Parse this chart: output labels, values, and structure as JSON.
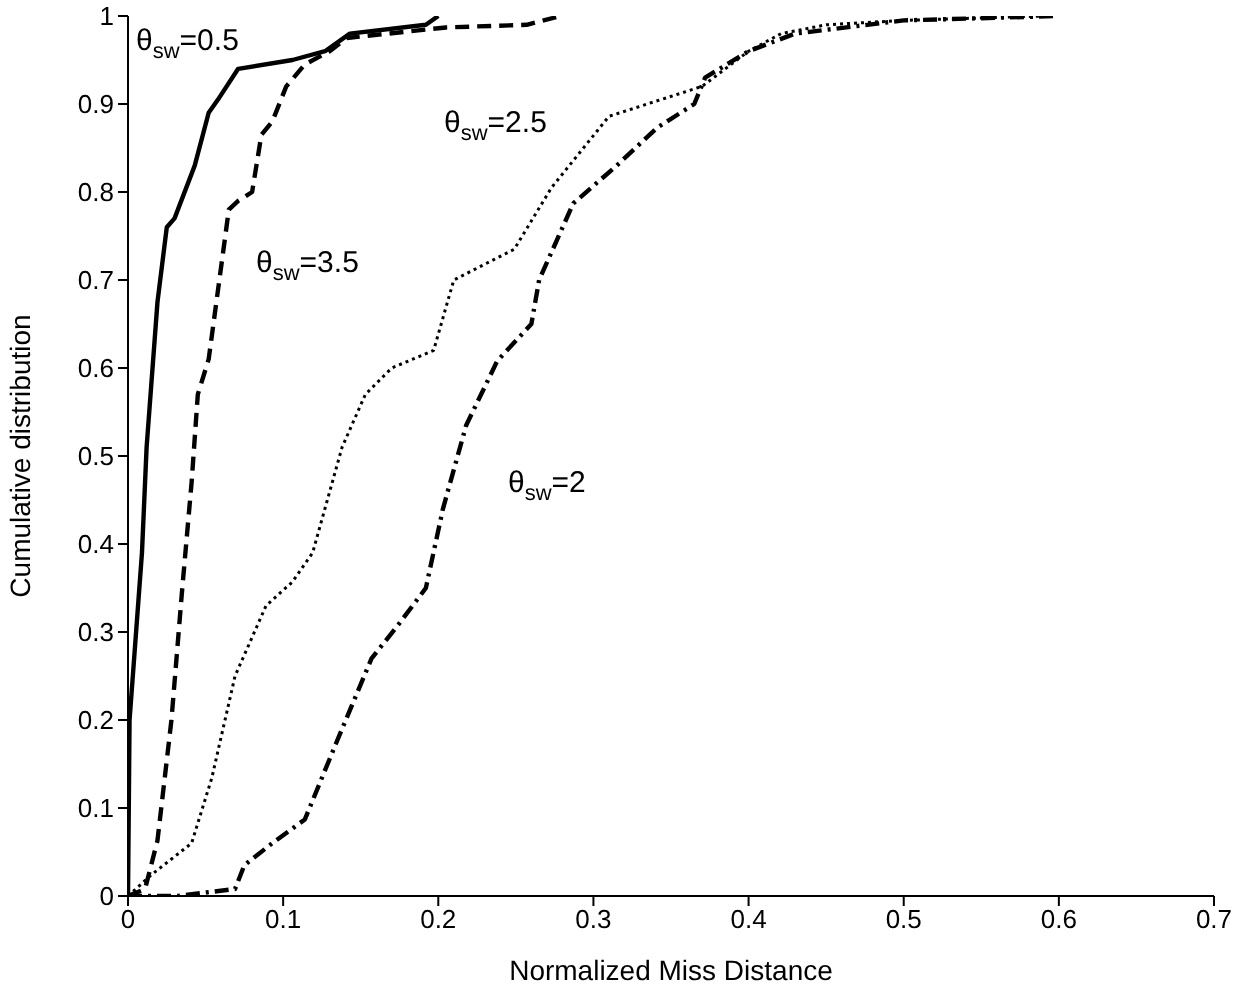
{
  "chart_data": {
    "type": "line",
    "xlabel": "Normalized Miss Distance",
    "ylabel": "Cumulative distribution",
    "xlim": [
      0,
      0.7
    ],
    "xticks": [
      0,
      0.1,
      0.2,
      0.3,
      0.4,
      0.5,
      0.6,
      0.7
    ],
    "ylim": [
      0,
      1
    ],
    "yticks": [
      0,
      0.1,
      0.2,
      0.3,
      0.4,
      0.5,
      0.6,
      0.7,
      0.8,
      0.9,
      1
    ],
    "marker": "none",
    "series": [
      {
        "name": "θ$_{sw}$=0.5",
        "color": "#000000",
        "line_style": "solid",
        "x": [
          0,
          0.001,
          0.009,
          0.012,
          0.019,
          0.025,
          0.03,
          0.043,
          0.052,
          0.058,
          0.071,
          0.106,
          0.127,
          0.143,
          0.192,
          0.2
        ],
        "values": [
          0,
          0.2,
          0.39,
          0.51,
          0.675,
          0.76,
          0.77,
          0.83,
          0.89,
          0.905,
          0.94,
          0.95,
          0.96,
          0.98,
          0.99,
          1
        ]
      },
      {
        "name": "θ$_{sw}$=3.5",
        "color": "#000000",
        "line_style": "dashed",
        "x": [
          0,
          0.011,
          0.019,
          0.028,
          0.035,
          0.041,
          0.045,
          0.052,
          0.065,
          0.071,
          0.08,
          0.086,
          0.093,
          0.102,
          0.114,
          0.13,
          0.141,
          0.205,
          0.257,
          0.279
        ],
        "values": [
          0,
          0.008,
          0.063,
          0.2,
          0.35,
          0.47,
          0.57,
          0.61,
          0.78,
          0.79,
          0.8,
          0.865,
          0.88,
          0.92,
          0.945,
          0.96,
          0.975,
          0.987,
          0.99,
          1
        ]
      },
      {
        "name": "θ$_{sw}$=2.5",
        "color": "#000000",
        "line_style": "dotted",
        "x": [
          0,
          0.015,
          0.041,
          0.054,
          0.069,
          0.089,
          0.106,
          0.119,
          0.138,
          0.153,
          0.17,
          0.197,
          0.21,
          0.249,
          0.273,
          0.31,
          0.37,
          0.4,
          0.421,
          0.45,
          0.5,
          0.59
        ],
        "values": [
          0,
          0.024,
          0.06,
          0.134,
          0.25,
          0.33,
          0.357,
          0.39,
          0.51,
          0.57,
          0.6,
          0.62,
          0.7,
          0.735,
          0.805,
          0.886,
          0.92,
          0.96,
          0.98,
          0.99,
          0.995,
          1
        ]
      },
      {
        "name": "θ$_{sw}$=2",
        "color": "#000000",
        "line_style": "dashdot",
        "x": [
          0,
          0.032,
          0.069,
          0.075,
          0.093,
          0.114,
          0.134,
          0.157,
          0.175,
          0.192,
          0.203,
          0.218,
          0.238,
          0.26,
          0.265,
          0.287,
          0.315,
          0.341,
          0.365,
          0.372,
          0.4,
          0.43,
          0.5,
          0.6
        ],
        "values": [
          0,
          0,
          0.008,
          0.035,
          0.06,
          0.087,
          0.173,
          0.27,
          0.31,
          0.35,
          0.44,
          0.535,
          0.608,
          0.65,
          0.7,
          0.787,
          0.83,
          0.873,
          0.9,
          0.93,
          0.96,
          0.98,
          0.995,
          1
        ]
      }
    ]
  }
}
